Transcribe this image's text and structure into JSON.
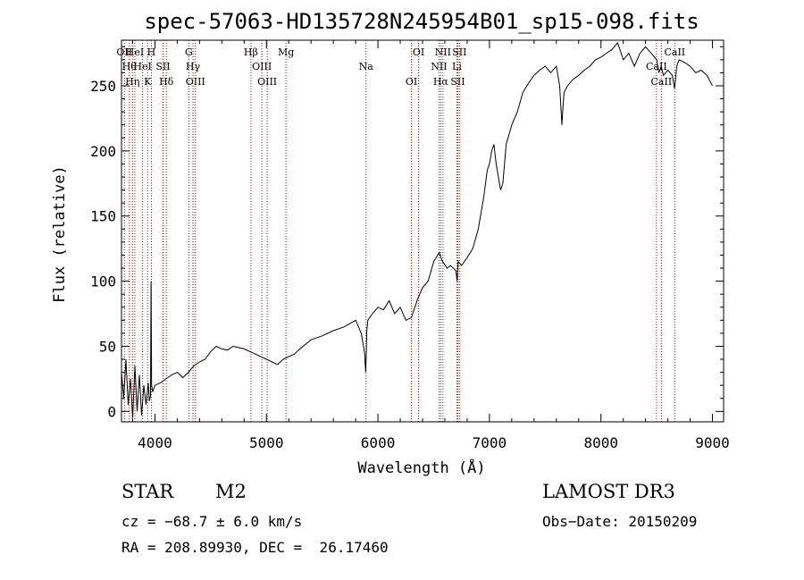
{
  "chart_data": {
    "type": "line",
    "title": "spec-57063-HD135728N245954B01_sp15-098.fits",
    "xlabel": "Wavelength (Å)",
    "ylabel": "Flux (relative)",
    "xlim": [
      3700,
      9100
    ],
    "ylim": [
      -8,
      285
    ],
    "xticks": [
      4000,
      5000,
      6000,
      7000,
      8000,
      9000
    ],
    "yticks": [
      0,
      50,
      100,
      150,
      200,
      250
    ],
    "series": [
      {
        "name": "spectrum",
        "x": [
          3700,
          3720,
          3740,
          3760,
          3780,
          3800,
          3820,
          3840,
          3860,
          3880,
          3900,
          3920,
          3940,
          3950,
          3960,
          3965,
          3970,
          3980,
          4000,
          4050,
          4100,
          4150,
          4200,
          4250,
          4300,
          4350,
          4400,
          4450,
          4500,
          4550,
          4600,
          4650,
          4700,
          4750,
          4800,
          4850,
          4900,
          4950,
          5000,
          5050,
          5100,
          5150,
          5200,
          5250,
          5300,
          5400,
          5500,
          5600,
          5700,
          5800,
          5850,
          5880,
          5890,
          5895,
          5900,
          5910,
          5950,
          6000,
          6050,
          6100,
          6150,
          6200,
          6250,
          6300,
          6350,
          6400,
          6450,
          6500,
          6550,
          6565,
          6580,
          6620,
          6650,
          6700,
          6710,
          6720,
          6750,
          6800,
          6850,
          6900,
          6950,
          6980,
          7000,
          7020,
          7040,
          7060,
          7080,
          7100,
          7120,
          7150,
          7200,
          7250,
          7300,
          7350,
          7400,
          7450,
          7500,
          7550,
          7600,
          7630,
          7650,
          7660,
          7670,
          7700,
          7750,
          7800,
          7850,
          7900,
          7950,
          8000,
          8050,
          8100,
          8150,
          8200,
          8250,
          8300,
          8350,
          8400,
          8450,
          8500,
          8520,
          8540,
          8560,
          8600,
          8640,
          8660,
          8680,
          8700,
          8750,
          8800,
          8850,
          8900,
          8950,
          9000
        ],
        "values": [
          30,
          10,
          40,
          5,
          25,
          -5,
          35,
          0,
          28,
          -3,
          20,
          5,
          22,
          8,
          12,
          100,
          20,
          15,
          20,
          22,
          25,
          28,
          30,
          26,
          30,
          35,
          38,
          40,
          46,
          50,
          48,
          47,
          50,
          49,
          48,
          46,
          44,
          42,
          40,
          38,
          36,
          40,
          42,
          44,
          48,
          55,
          58,
          62,
          65,
          70,
          60,
          45,
          30,
          45,
          62,
          70,
          75,
          80,
          78,
          85,
          75,
          80,
          70,
          72,
          85,
          95,
          100,
          115,
          122,
          118,
          115,
          110,
          112,
          108,
          100,
          115,
          112,
          118,
          125,
          140,
          165,
          185,
          190,
          200,
          205,
          190,
          180,
          170,
          175,
          205,
          220,
          230,
          245,
          252,
          258,
          262,
          265,
          260,
          265,
          250,
          220,
          235,
          245,
          250,
          255,
          258,
          262,
          265,
          270,
          272,
          275,
          278,
          283,
          270,
          275,
          265,
          275,
          280,
          275,
          270,
          260,
          265,
          258,
          262,
          258,
          248,
          265,
          270,
          268,
          265,
          260,
          262,
          258,
          250
        ]
      }
    ],
    "line_markers": [
      {
        "wavelength": 3726,
        "label": "OII"
      },
      {
        "wavelength": 3770,
        "label": "Hθ"
      },
      {
        "wavelength": 3798,
        "label": "Hη"
      },
      {
        "wavelength": 3820,
        "label": "HeI"
      },
      {
        "wavelength": 3889,
        "label": "HeI"
      },
      {
        "wavelength": 3934,
        "label": "K"
      },
      {
        "wavelength": 3968,
        "label": "H"
      },
      {
        "wavelength": 4072,
        "label": "SII"
      },
      {
        "wavelength": 4102,
        "label": "Hδ"
      },
      {
        "wavelength": 4304,
        "label": "G"
      },
      {
        "wavelength": 4341,
        "label": "Hγ"
      },
      {
        "wavelength": 4363,
        "label": "OIII"
      },
      {
        "wavelength": 4861,
        "label": "Hβ"
      },
      {
        "wavelength": 4959,
        "label": "OIII"
      },
      {
        "wavelength": 5007,
        "label": "OIII"
      },
      {
        "wavelength": 5175,
        "label": "Mg"
      },
      {
        "wavelength": 5893,
        "label": "Na"
      },
      {
        "wavelength": 6300,
        "label": "OI"
      },
      {
        "wavelength": 6364,
        "label": "OI"
      },
      {
        "wavelength": 6548,
        "label": "NII"
      },
      {
        "wavelength": 6563,
        "label": "Hα"
      },
      {
        "wavelength": 6583,
        "label": "NII"
      },
      {
        "wavelength": 6708,
        "label": "Li"
      },
      {
        "wavelength": 6716,
        "label": "SII"
      },
      {
        "wavelength": 6731,
        "label": "SII"
      },
      {
        "wavelength": 8498,
        "label": "CaII"
      },
      {
        "wavelength": 8542,
        "label": "CaII"
      },
      {
        "wavelength": 8662,
        "label": "CaII"
      }
    ],
    "colors": {
      "spectrum": "#000000",
      "markers": "#c00000",
      "axes": "#000000"
    }
  },
  "footer": {
    "object_class": "STAR",
    "subclass": "M2",
    "survey": "LAMOST DR3",
    "cz": "cz = −68.7 ± 6.0 km/s",
    "obs_date": "Obs−Date: 20150209",
    "coords": "RA = 208.89930, DEC =  26.17460"
  }
}
